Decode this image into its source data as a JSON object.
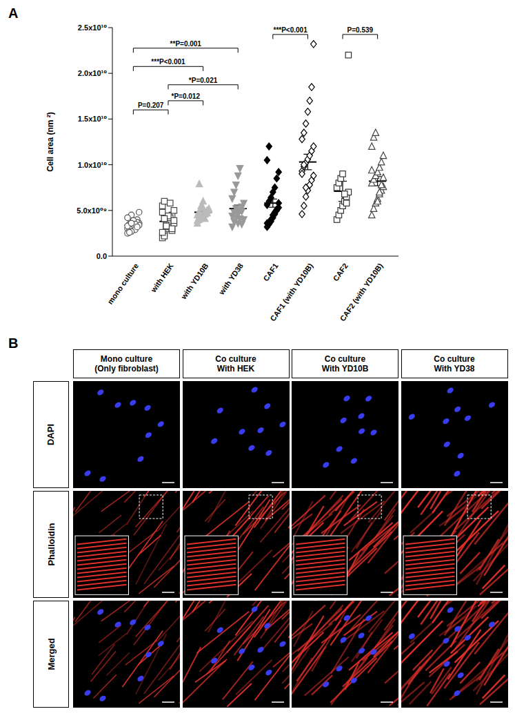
{
  "panel_labels": [
    "A",
    "B"
  ],
  "chart_data": {
    "type": "scatter",
    "y_label": "Cell area (nm ²)",
    "categories": [
      "mono culture",
      "with HEK",
      "with YD10B",
      "with YD38",
      "CAF1",
      "CAF1 (with YD10B)",
      "CAF2",
      "CAF2 (with YD10B)"
    ],
    "groups": [
      {
        "color": "#555555",
        "marker": "circle_open",
        "values": [
          3000000000.0,
          3500000000.0,
          2800000000.0,
          3800000000.0,
          3200000000.0,
          4000000000.0,
          3600000000.0,
          2500000000.0,
          3300000000.0,
          4500000000.0,
          3100000000.0,
          2900000000.0,
          3700000000.0,
          3400000000.0,
          4200000000.0,
          3000000000.0,
          2700000000.0,
          3900000000.0,
          3500000000.0,
          3200000000.0,
          4800000000.0,
          3300000000.0,
          2600000000.0,
          3600000000.0
        ],
        "mean": 3400000000.0,
        "sem": 130000000.0
      },
      {
        "color": "#444444",
        "marker": "square_open",
        "values": [
          2000000000.0,
          2500000000.0,
          3000000000.0,
          3500000000.0,
          4000000000.0,
          4500000000.0,
          5000000000.0,
          5500000000.0,
          6000000000.0,
          3200000000.0,
          3800000000.0,
          4200000000.0,
          2800000000.0,
          3600000000.0,
          4800000000.0,
          2200000000.0,
          3400000000.0,
          4400000000.0,
          5800000000.0,
          3000000000.0,
          3900000000.0,
          2600000000.0,
          4100000000.0,
          3300000000.0
        ],
        "mean": 3800000000.0,
        "sem": 250000000.0
      },
      {
        "color": "#bbbbbb",
        "marker": "triangle_filled",
        "values": [
          3600000000.0,
          4000000000.0,
          4300000000.0,
          4600000000.0,
          4800000000.0,
          5000000000.0,
          5200000000.0,
          4500000000.0,
          4900000000.0,
          5500000000.0,
          6000000000.0,
          4100000000.0,
          4700000000.0,
          5100000000.0,
          3900000000.0,
          7900000000.0,
          4400000000.0,
          5300000000.0,
          4600000000.0,
          4800000000.0
        ],
        "mean": 4800000000.0,
        "sem": 200000000.0
      },
      {
        "color": "#999999",
        "marker": "triangledown_filled",
        "values": [
          3200000000.0,
          3800000000.0,
          4200000000.0,
          4600000000.0,
          5000000000.0,
          5400000000.0,
          5800000000.0,
          6300000000.0,
          7000000000.0,
          7800000000.0,
          8800000000.0,
          9600000000.0,
          3500000000.0,
          4000000000.0,
          4400000000.0,
          4800000000.0,
          5200000000.0,
          3600000000.0,
          4100000000.0,
          4900000000.0
        ],
        "mean": 5200000000.0,
        "sem": 380000000.0
      },
      {
        "color": "#000000",
        "marker": "diamond_filled",
        "values": [
          3200000000.0,
          3500000000.0,
          4000000000.0,
          4500000000.0,
          4800000000.0,
          5000000000.0,
          5300000000.0,
          5600000000.0,
          6000000000.0,
          6400000000.0,
          7000000000.0,
          7500000000.0,
          8500000000.0,
          9200000000.0,
          10500000000.0,
          12000000000.0,
          3800000000.0,
          4200000000.0,
          4600000000.0,
          5100000000.0,
          5800000000.0,
          3600000000.0
        ],
        "mean": 5800000000.0,
        "sem": 450000000.0
      },
      {
        "color": "#000000",
        "marker": "diamond_open",
        "values": [
          4600000000.0,
          5500000000.0,
          6500000000.0,
          7200000000.0,
          7800000000.0,
          8300000000.0,
          8800000000.0,
          9300000000.0,
          9800000000.0,
          10200000000.0,
          10600000000.0,
          11000000000.0,
          11500000000.0,
          12000000000.0,
          12800000000.0,
          13500000000.0,
          14500000000.0,
          15800000000.0,
          17000000000.0,
          18500000000.0,
          23200000000.0,
          9000000000.0,
          10000000000.0,
          7500000000.0
        ],
        "mean": 10300000000.0,
        "sem": 850000000.0
      },
      {
        "color": "#333333",
        "marker": "square_open",
        "values": [
          4000000000.0,
          4500000000.0,
          5000000000.0,
          5500000000.0,
          6000000000.0,
          6500000000.0,
          7000000000.0,
          7500000000.0,
          8000000000.0,
          8500000000.0,
          9000000000.0,
          6800000000.0,
          5800000000.0,
          22000000000.0
        ],
        "mean": 7100000000.0,
        "sem": 1100000000.0
      },
      {
        "color": "#444444",
        "marker": "triangle_open",
        "values": [
          4500000000.0,
          5200000000.0,
          5800000000.0,
          6300000000.0,
          6800000000.0,
          7200000000.0,
          7600000000.0,
          8000000000.0,
          8400000000.0,
          8800000000.0,
          9200000000.0,
          9700000000.0,
          10300000000.0,
          11000000000.0,
          12000000000.0,
          13000000000.0,
          13500000000.0,
          6000000000.0,
          7000000000.0,
          7800000000.0,
          8600000000.0,
          9400000000.0
        ],
        "mean": 8200000000.0,
        "sem": 500000000.0
      }
    ],
    "ylim": [
      0,
      25000000000.0
    ],
    "yticks": [
      {
        "value": 0,
        "label": "0.0"
      },
      {
        "value": 5000000000.0,
        "label": "5.0x10⁰⁹"
      },
      {
        "value": 10000000000.0,
        "label": "1.0x10¹⁰"
      },
      {
        "value": 15000000000.0,
        "label": "1.5x10¹⁰"
      },
      {
        "value": 20000000000.0,
        "label": "2.0x10¹⁰"
      },
      {
        "value": 25000000000.0,
        "label": "2.5x10¹⁰"
      }
    ],
    "comparisons": [
      {
        "from": "mono culture",
        "to": "with HEK",
        "label": "P=0.207"
      },
      {
        "from": "mono culture",
        "to": "with YD10B",
        "label": "***P<0.001"
      },
      {
        "from": "mono culture",
        "to": "with YD38",
        "label": "**P=0.001"
      },
      {
        "from": "with HEK",
        "to": "with YD10B",
        "label": "*P=0.012"
      },
      {
        "from": "with HEK",
        "to": "with YD38",
        "label": "*P=0.021"
      },
      {
        "from": "CAF1",
        "to": "CAF1 (with YD10B)",
        "label": "***P<0.001"
      },
      {
        "from": "CAF2",
        "to": "CAF2 (with YD10B)",
        "label": "P=0.539"
      }
    ]
  },
  "image_grid": {
    "columns": [
      [
        "Mono culture",
        "(Only fibroblast)"
      ],
      [
        "Co culture",
        "With HEK"
      ],
      [
        "Co culture",
        "With YD10B"
      ],
      [
        "Co culture",
        "With YD38"
      ]
    ],
    "rows": [
      "DAPI",
      "Phalloidin",
      "Merged"
    ]
  }
}
